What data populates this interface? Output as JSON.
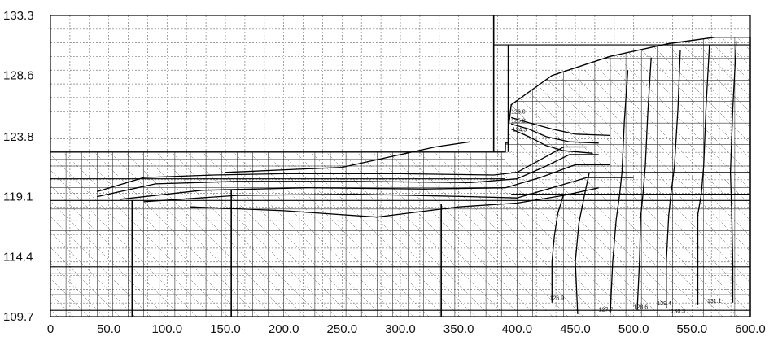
{
  "chart_data": {
    "type": "contour",
    "title": "",
    "xlabel": "",
    "ylabel": "",
    "xlim": [
      0,
      600
    ],
    "ylim": [
      109.7,
      133.3
    ],
    "x_ticks": [
      {
        "value": 0,
        "label": "0"
      },
      {
        "value": 50,
        "label": "50.0"
      },
      {
        "value": 100,
        "label": "100.0"
      },
      {
        "value": 150,
        "label": "150.0"
      },
      {
        "value": 200,
        "label": "200.0"
      },
      {
        "value": 250,
        "label": "250.0"
      },
      {
        "value": 300,
        "label": "300.0"
      },
      {
        "value": 350,
        "label": "350.0"
      },
      {
        "value": 400,
        "label": "400.0"
      },
      {
        "value": 450,
        "label": "450.0"
      },
      {
        "value": 500,
        "label": "500.0"
      },
      {
        "value": 550,
        "label": "550.0"
      },
      {
        "value": 600,
        "label": "600.0"
      }
    ],
    "y_ticks": [
      {
        "value": 109.7,
        "label": "109.7"
      },
      {
        "value": 114.4,
        "label": "114.4"
      },
      {
        "value": 119.1,
        "label": "119.1"
      },
      {
        "value": 123.8,
        "label": "123.8"
      },
      {
        "value": 128.6,
        "label": "128.6"
      },
      {
        "value": 133.3,
        "label": "133.3"
      }
    ],
    "grid": true,
    "dam_outline": [
      [
        0,
        122.6
      ],
      [
        390,
        122.6
      ],
      [
        390,
        123.3
      ],
      [
        392.5,
        123.3
      ],
      [
        392.5,
        124.4
      ],
      [
        395,
        126.3
      ],
      [
        430,
        128.6
      ],
      [
        480,
        130.1
      ],
      [
        530,
        131.1
      ],
      [
        570,
        131.6
      ],
      [
        600,
        131.6
      ],
      [
        600,
        109.7
      ]
    ],
    "horizontal_lines": [
      {
        "x0": 0,
        "x1": 390,
        "y": 122.0
      },
      {
        "x0": 0,
        "x1": 390,
        "y": 120.5
      },
      {
        "x0": 0,
        "x1": 600,
        "y": 118.8
      },
      {
        "x0": 395,
        "x1": 600,
        "y": 121.0
      },
      {
        "x0": 395,
        "x1": 600,
        "y": 119.3
      },
      {
        "x0": 0,
        "x1": 600,
        "y": 110.2
      },
      {
        "x0": 0,
        "x1": 600,
        "y": 111.4
      },
      {
        "x0": 0,
        "x1": 600,
        "y": 113.6
      },
      {
        "x0": 380,
        "x1": 600,
        "y": 131.0
      }
    ],
    "thick_verticals": [
      {
        "x": 70,
        "y0": 109.7,
        "y1": 118.8
      },
      {
        "x": 155,
        "y0": 109.7,
        "y1": 119.6
      },
      {
        "x": 335,
        "y0": 109.7,
        "y1": 118.5
      },
      {
        "x": 380,
        "y0": 122.6,
        "y1": 133.3
      },
      {
        "x": 392.5,
        "y0": 122.6,
        "y1": 131.0
      }
    ],
    "contours": [
      [
        [
          430,
          110.8
        ],
        [
          430,
          114.0
        ],
        [
          432,
          116.0
        ],
        [
          435,
          117.8
        ],
        [
          440,
          119.3
        ]
      ],
      [
        [
          452,
          109.9
        ],
        [
          450,
          114.0
        ],
        [
          453,
          117.0
        ],
        [
          458,
          119.3
        ],
        [
          462,
          121.0
        ]
      ],
      [
        [
          480,
          110.0
        ],
        [
          482,
          114.0
        ],
        [
          485,
          117.3
        ],
        [
          488,
          119.3
        ],
        [
          490,
          121.0
        ],
        [
          492,
          125.0
        ],
        [
          495,
          129.0
        ]
      ],
      [
        [
          503,
          110.2
        ],
        [
          505,
          114.0
        ],
        [
          506,
          117.5
        ],
        [
          508,
          119.3
        ],
        [
          510,
          121.5
        ],
        [
          512,
          125.5
        ],
        [
          515,
          130.0
        ]
      ],
      [
        [
          528,
          110.4
        ],
        [
          528,
          114.0
        ],
        [
          530,
          117.6
        ],
        [
          532,
          119.3
        ],
        [
          535,
          121.5
        ],
        [
          538,
          126.0
        ],
        [
          540,
          130.6
        ]
      ],
      [
        [
          555,
          110.6
        ],
        [
          555,
          114.0
        ],
        [
          555,
          117.7
        ],
        [
          558,
          119.3
        ],
        [
          560,
          121.5
        ],
        [
          562,
          126.0
        ],
        [
          565,
          131.0
        ]
      ],
      [
        [
          585,
          110.8
        ],
        [
          585,
          114.0
        ],
        [
          584,
          118.0
        ],
        [
          583,
          121.0
        ],
        [
          585,
          126.0
        ],
        [
          588,
          131.3
        ]
      ],
      [
        [
          40,
          119.5
        ],
        [
          80,
          120.6
        ],
        [
          140,
          120.8
        ],
        [
          200,
          120.9
        ],
        [
          300,
          120.9
        ],
        [
          380,
          120.8
        ],
        [
          400,
          121.0
        ],
        [
          420,
          122.0
        ],
        [
          440,
          123.0
        ],
        [
          460,
          123.0
        ]
      ],
      [
        [
          40,
          119.1
        ],
        [
          90,
          120.1
        ],
        [
          160,
          120.3
        ],
        [
          260,
          120.3
        ],
        [
          360,
          120.2
        ],
        [
          400,
          120.5
        ],
        [
          425,
          121.5
        ],
        [
          445,
          122.4
        ],
        [
          470,
          122.4
        ]
      ],
      [
        [
          60,
          118.9
        ],
        [
          130,
          119.6
        ],
        [
          220,
          119.8
        ],
        [
          320,
          119.7
        ],
        [
          390,
          119.8
        ],
        [
          420,
          120.6
        ],
        [
          450,
          121.6
        ],
        [
          480,
          121.6
        ]
      ],
      [
        [
          80,
          118.7
        ],
        [
          160,
          119.2
        ],
        [
          260,
          119.3
        ],
        [
          360,
          119.1
        ],
        [
          400,
          119.0
        ],
        [
          430,
          119.8
        ],
        [
          460,
          120.6
        ],
        [
          500,
          120.6
        ]
      ],
      [
        [
          120,
          118.3
        ],
        [
          200,
          118.0
        ],
        [
          280,
          117.5
        ],
        [
          350,
          118.3
        ],
        [
          400,
          118.6
        ],
        [
          440,
          119.2
        ],
        [
          470,
          119.8
        ]
      ],
      [
        [
          395,
          124.4
        ],
        [
          410,
          123.8
        ],
        [
          425,
          123.1
        ],
        [
          440,
          122.7
        ],
        [
          465,
          122.5
        ]
      ],
      [
        [
          395,
          124.8
        ],
        [
          410,
          124.4
        ],
        [
          425,
          123.8
        ],
        [
          445,
          123.4
        ],
        [
          470,
          123.3
        ]
      ],
      [
        [
          395,
          125.3
        ],
        [
          410,
          124.9
        ],
        [
          430,
          124.4
        ],
        [
          450,
          124.0
        ],
        [
          480,
          123.9
        ]
      ],
      [
        [
          150,
          121.0
        ],
        [
          250,
          121.4
        ],
        [
          330,
          123.0
        ],
        [
          360,
          123.4
        ]
      ]
    ],
    "annotations": [
      {
        "text": "126.0",
        "x": 395,
        "y": 125.6
      },
      {
        "text": "125.2",
        "x": 395,
        "y": 124.9
      },
      {
        "text": "124.3",
        "x": 396,
        "y": 124.2
      },
      {
        "text": "126.9",
        "x": 428,
        "y": 111.0
      },
      {
        "text": "127.7",
        "x": 470,
        "y": 110.1
      },
      {
        "text": "128.6",
        "x": 500,
        "y": 110.3
      },
      {
        "text": "129.4",
        "x": 520,
        "y": 110.6
      },
      {
        "text": "130.3",
        "x": 532,
        "y": 110.0
      },
      {
        "text": "131.1",
        "x": 563,
        "y": 110.8
      }
    ]
  }
}
